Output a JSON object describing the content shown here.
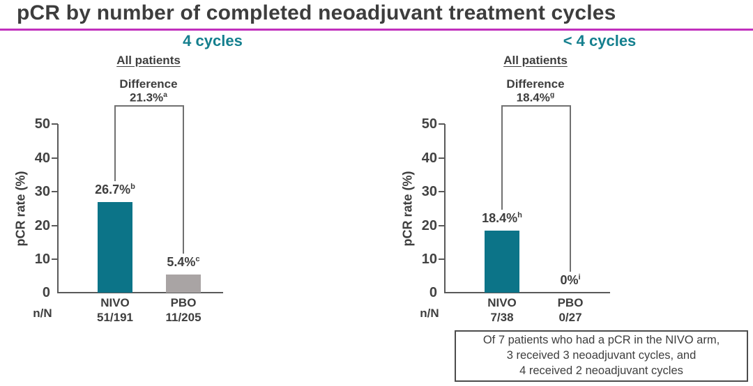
{
  "title": "pCR by number of completed neoadjuvant treatment cycles",
  "colors": {
    "accent_magenta": "#c12fbd",
    "heading_teal": "#147f8e",
    "bar_teal": "#0c7488",
    "bar_gray": "#a9a4a4",
    "text_dark": "#3e3e3e",
    "axis_gray": "#595959"
  },
  "panels": [
    {
      "heading": "4 cycles",
      "subheading": "All patients",
      "difference": {
        "label": "Difference",
        "value": "21.3%",
        "sup": "a"
      },
      "ylabel": "pCR rate (%)",
      "yticks": [
        "50",
        "40",
        "30",
        "20",
        "10",
        "0"
      ],
      "nN_label": "n/N",
      "bars": [
        {
          "group": "NIVO",
          "value": 26.7,
          "value_label": "26.7%",
          "sup": "b",
          "nN": "51/191",
          "color_key": "bar_teal"
        },
        {
          "group": "PBO",
          "value": 5.4,
          "value_label": "5.4%",
          "sup": "c",
          "nN": "11/205",
          "color_key": "bar_gray"
        }
      ]
    },
    {
      "heading": "< 4 cycles",
      "subheading": "All patients",
      "difference": {
        "label": "Difference",
        "value": "18.4%",
        "sup": "g"
      },
      "ylabel": "pCR rate (%)",
      "yticks": [
        "50",
        "40",
        "30",
        "20",
        "10",
        "0"
      ],
      "nN_label": "n/N",
      "bars": [
        {
          "group": "NIVO",
          "value": 18.4,
          "value_label": "18.4%",
          "sup": "h",
          "nN": "7/38",
          "color_key": "bar_teal"
        },
        {
          "group": "PBO",
          "value": 0,
          "value_label": "0%",
          "sup": "i",
          "nN": "0/27",
          "color_key": "bar_gray"
        }
      ]
    }
  ],
  "footer_note": {
    "lines": [
      "Of 7 patients who had a pCR in the NIVO arm,",
      "3 received 3 neoadjuvant cycles, and",
      "4 received 2 neoadjuvant cycles"
    ]
  },
  "chart_data": [
    {
      "type": "bar",
      "title": "4 cycles",
      "subtitle": "All patients",
      "categories": [
        "NIVO",
        "PBO"
      ],
      "values": [
        26.7,
        5.4
      ],
      "bar_labels": [
        "26.7%",
        "5.4%"
      ],
      "bar_label_sups": [
        "b",
        "c"
      ],
      "n_N": [
        "51/191",
        "11/205"
      ],
      "difference": "21.3%",
      "difference_sup": "a",
      "xlabel": "",
      "ylabel": "pCR rate (%)",
      "ylim": [
        0,
        50
      ],
      "yticks": [
        0,
        10,
        20,
        30,
        40,
        50
      ],
      "bar_colors": [
        "#0c7488",
        "#a9a4a4"
      ],
      "grid": false,
      "legend_position": "none"
    },
    {
      "type": "bar",
      "title": "< 4 cycles",
      "subtitle": "All patients",
      "categories": [
        "NIVO",
        "PBO"
      ],
      "values": [
        18.4,
        0
      ],
      "bar_labels": [
        "18.4%",
        "0%"
      ],
      "bar_label_sups": [
        "h",
        "i"
      ],
      "n_N": [
        "7/38",
        "0/27"
      ],
      "difference": "18.4%",
      "difference_sup": "g",
      "xlabel": "",
      "ylabel": "pCR rate (%)",
      "ylim": [
        0,
        50
      ],
      "yticks": [
        0,
        10,
        20,
        30,
        40,
        50
      ],
      "bar_colors": [
        "#0c7488",
        "#a9a4a4"
      ],
      "grid": false,
      "legend_position": "none"
    }
  ]
}
